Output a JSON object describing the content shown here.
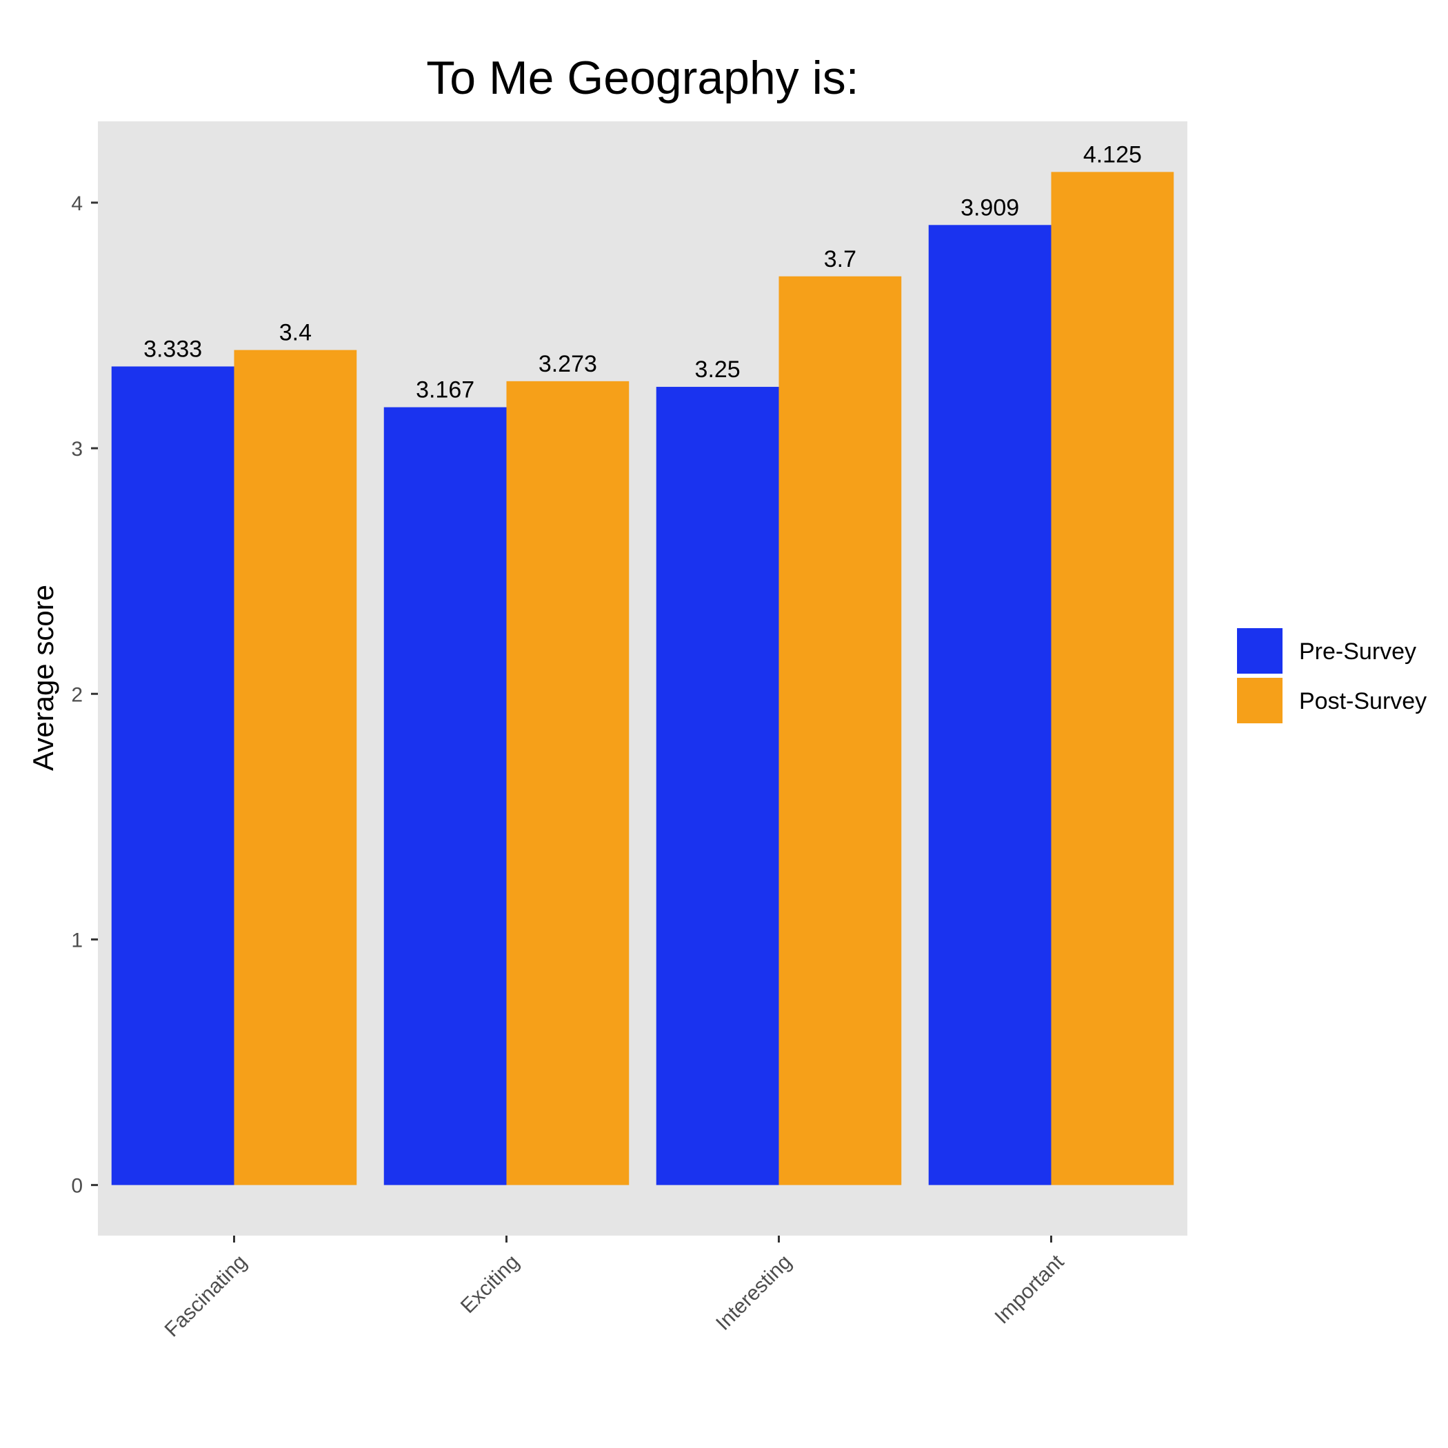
{
  "chart_data": {
    "type": "bar",
    "title": "To Me Geography is:",
    "xlabel": "",
    "ylabel": "Average score",
    "categories": [
      "Fascinating",
      "Exciting",
      "Interesting",
      "Important"
    ],
    "series": [
      {
        "name": "Pre-Survey",
        "color": "#1a33ef",
        "values": [
          3.333,
          3.167,
          3.25,
          3.909
        ],
        "labels": [
          "3.333",
          "3.167",
          "3.25",
          "3.909"
        ]
      },
      {
        "name": "Post-Survey",
        "color": "#f6a019",
        "values": [
          3.4,
          3.273,
          3.7,
          4.125
        ],
        "labels": [
          "3.4",
          "3.273",
          "3.7",
          "4.125"
        ]
      }
    ],
    "yticks": [
      "0",
      "1",
      "2",
      "3",
      "4"
    ],
    "ylim": [
      -0.206,
      4.331
    ],
    "panel_background": "#e5e5e5",
    "grid": false,
    "legend_position": "right"
  }
}
